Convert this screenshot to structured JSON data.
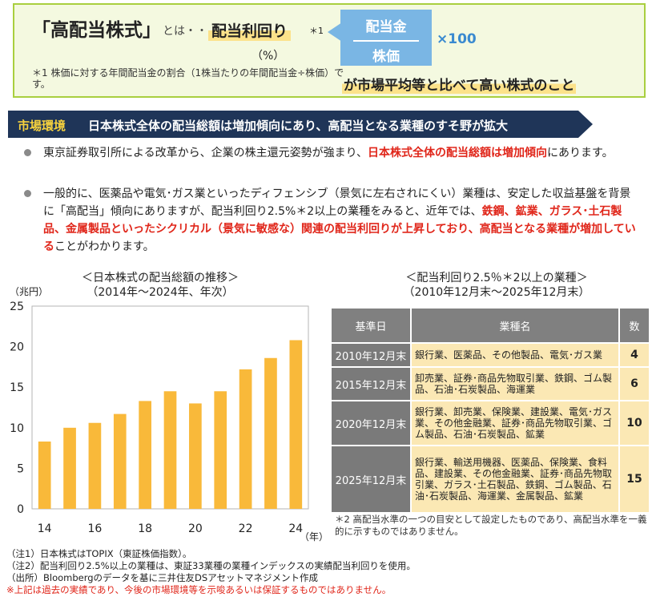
{
  "definition": {
    "title": "「高配当株式」",
    "toha": "とは・・",
    "yield_label": "配当利回り",
    "yield_mark": "＊1",
    "percent": "（%）",
    "numerator": "配当金",
    "denominator": "株価",
    "multiplier": "×100",
    "note": "＊1 株価に対する年間配当金の割合（1株当たりの年間配当金÷株価）です。",
    "conclusion": "が市場平均等と比べて高い株式のこと"
  },
  "banner": {
    "tag": "市場環境",
    "text": "日本株式全体の配当総額は増加傾向にあり、高配当となる業種のすそ野が拡大"
  },
  "bullets": [
    {
      "pre": "東京証券取引所による改革から、企業の株主還元姿勢が強まり、",
      "red": "日本株式全体の配当総額は増加傾向",
      "post": "にあります。"
    },
    {
      "pre": "一般的に、医薬品や電気･ガス業といったディフェンシブ（景気に左右されにくい）業種は、安定した収益基盤を背景に「高配当」傾向にありますが、配当利回り2.5%＊2以上の業種をみると、近年では、",
      "red": "鉄鋼、鉱業、ガラス･土石製品、金属製品といったシクリカル（景気に敏感な）関連の配当利回りが上昇しており、高配当となる業種が増加している",
      "post": "ことがわかります。"
    }
  ],
  "chart_data": {
    "type": "bar",
    "title": "＜日本株式の配当総額の推移＞",
    "subtitle": "（2014年～2024年、年次）",
    "ylabel": "（兆円）",
    "xlabel": "（年）",
    "ylim": [
      0,
      25
    ],
    "yticks": [
      "0",
      "5",
      "10",
      "15",
      "20",
      "25"
    ],
    "xticks": [
      "14",
      "16",
      "18",
      "20",
      "22",
      "24"
    ],
    "categories": [
      "2014",
      "2015",
      "2016",
      "2017",
      "2018",
      "2019",
      "2020",
      "2021",
      "2022",
      "2023",
      "2024"
    ],
    "values": [
      8.3,
      10.0,
      10.6,
      11.7,
      13.3,
      14.5,
      13.0,
      14.5,
      17.2,
      18.6,
      20.8
    ],
    "bar_color": "#f9b93a",
    "grid": false
  },
  "table": {
    "title": "＜配当利回り2.5％＊2以上の業種＞",
    "subtitle": "（2010年12月末～2025年12月末）",
    "headers": [
      "基準日",
      "業種名",
      "数"
    ],
    "rows": [
      {
        "date": "2010年12月末",
        "industries": "銀行業、医薬品、その他製品、電気･ガス業",
        "count": "4"
      },
      {
        "date": "2015年12月末",
        "industries": "卸売業、証券･商品先物取引業、鉄鋼、ゴム製品、石油･石炭製品、海運業",
        "count": "6"
      },
      {
        "date": "2020年12月末",
        "industries": "銀行業、卸売業、保険業、建設業、電気･ガス業、その他金融業、証券･商品先物取引業、ゴム製品、石油･石炭製品、鉱業",
        "count": "10"
      },
      {
        "date": "2025年12月末",
        "industries": "銀行業、輸送用機器、医薬品、保険業、食料品、建設業、その他金融業、証券･商品先物取引業、ガラス･土石製品、鉄鋼、ゴム製品、石油･石炭製品、海運業、金属製品、鉱業",
        "count": "15"
      }
    ],
    "note": "＊2 高配当水準の一つの目安として設定したものであり、高配当水準を一義的に示すものではありません。"
  },
  "footnotes": {
    "note1": "（注1）日本株式はTOPIX（東証株価指数）。",
    "note2": "（注2）配当利回り2.5%以上の業種は、東証33業種の業種インデックスの実績配当利回りを使用。",
    "source": "（出所）Bloombergのデータを基に三井住友DSアセットマネジメント作成",
    "disclaimer": "※上記は過去の実績であり、今後の市場環境等を示唆あるいは保証するものではありません。"
  }
}
